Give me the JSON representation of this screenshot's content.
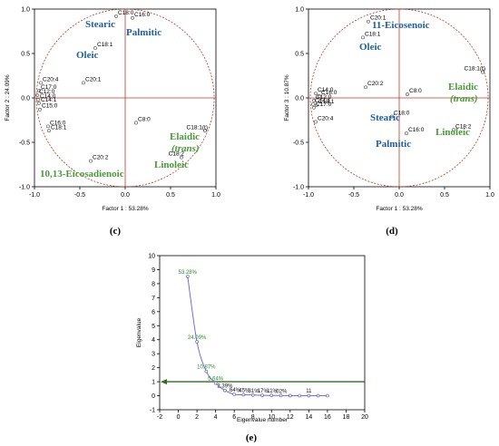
{
  "chart_data": [
    {
      "type": "scatter",
      "panel": "(c)",
      "xlabel": "Factor 1 : 53.28%",
      "ylabel": "Factor 2 : 24.09%",
      "xlim": [
        -1.0,
        1.0
      ],
      "ylim": [
        -1.0,
        1.0
      ],
      "xticks": [
        "-1.0",
        "-0.5",
        "0.0",
        "0.5",
        "1.0"
      ],
      "yticks": [
        "-1.0",
        "-0.5",
        "0.0",
        "0.5",
        "1.0"
      ],
      "points": [
        {
          "label": "C18:0",
          "x": -0.1,
          "y": 0.92
        },
        {
          "label": "C16:0",
          "x": 0.08,
          "y": 0.9
        },
        {
          "label": "C18:1",
          "x": -0.33,
          "y": 0.56
        },
        {
          "label": "C20:1",
          "x": -0.46,
          "y": 0.17
        },
        {
          "label": "C20:4",
          "x": -0.93,
          "y": 0.17
        },
        {
          "label": "C17:0",
          "x": -0.95,
          "y": 0.08
        },
        {
          "label": "C12:0",
          "x": -0.97,
          "y": 0.03
        },
        {
          "label": "C14:0",
          "x": -0.96,
          "y": -0.02
        },
        {
          "label": "C14:1",
          "x": -0.95,
          "y": -0.06
        },
        {
          "label": "C15:0",
          "x": -0.94,
          "y": -0.13
        },
        {
          "label": "C16:0",
          "x": -0.85,
          "y": -0.32
        },
        {
          "label": "C18:1",
          "x": -0.84,
          "y": -0.37
        },
        {
          "label": "C8:0",
          "x": 0.12,
          "y": -0.28
        },
        {
          "label": "C18:1(t)",
          "x": 0.88,
          "y": -0.37
        },
        {
          "label": "C18:2",
          "x": 0.62,
          "y": -0.67
        },
        {
          "label": "C20:2",
          "x": -0.38,
          "y": -0.71
        }
      ],
      "annotations": {
        "stearic": "Stearic",
        "palmitic": "Palmitic",
        "oleic": "Oleic",
        "elaidic1": "Elaidic",
        "elaidic2": "(trans)",
        "linoleic": "Linoleic",
        "eicosadienoic": "10,13-Eicosadienoic"
      }
    },
    {
      "type": "scatter",
      "panel": "(d)",
      "xlabel": "Factor 1 : 53.28%",
      "ylabel": "Factor 3 : 10.87%",
      "xlim": [
        -1.0,
        1.0
      ],
      "ylim": [
        -1.0,
        1.0
      ],
      "xticks": [
        "-1.0",
        "-0.5",
        "0.0",
        "0.5",
        "1.0"
      ],
      "yticks": [
        "-1.0",
        "-0.5",
        "0.0",
        "0.5",
        "1.0"
      ],
      "points": [
        {
          "label": "C20:1",
          "x": -0.34,
          "y": 0.86
        },
        {
          "label": "C18:1",
          "x": -0.4,
          "y": 0.68
        },
        {
          "label": "C20:2",
          "x": -0.37,
          "y": 0.12
        },
        {
          "label": "C8:0",
          "x": 0.09,
          "y": 0.04
        },
        {
          "label": "C18:1(t)",
          "x": 0.92,
          "y": 0.29
        },
        {
          "label": "C14:0",
          "x": -0.92,
          "y": 0.05
        },
        {
          "label": "C16:0",
          "x": -0.88,
          "y": 0.02
        },
        {
          "label": "C12:0",
          "x": -0.94,
          "y": -0.03
        },
        {
          "label": "C14:1",
          "x": -0.95,
          "y": -0.07
        },
        {
          "label": "C18:1",
          "x": -0.91,
          "y": -0.08
        },
        {
          "label": "C17:0",
          "x": -0.94,
          "y": -0.11
        },
        {
          "label": "C20:4",
          "x": -0.92,
          "y": -0.27
        },
        {
          "label": "C18:0",
          "x": -0.08,
          "y": -0.21
        },
        {
          "label": "C16:0",
          "x": 0.08,
          "y": -0.4
        },
        {
          "label": "C18:2",
          "x": 0.6,
          "y": -0.36
        }
      ],
      "annotations": {
        "eicosenoic": "11-Eicosenoic",
        "oleic": "Oleic",
        "elaidic1": "Elaidic",
        "elaidic2": "(trans)",
        "stearic": "Stearic",
        "palmitic": "Palmitic",
        "linoleic": "Linoleic"
      }
    },
    {
      "type": "line",
      "panel": "(e)",
      "xlabel": "Eigenvalue number",
      "ylabel": "Eigenvalue",
      "xlim": [
        -2,
        20
      ],
      "ylim": [
        -1,
        10
      ],
      "xticks": [
        "-2",
        "0",
        "2",
        "4",
        "6",
        "8",
        "10",
        "12",
        "14",
        "16",
        "18",
        "20"
      ],
      "yticks": [
        "-1",
        "0",
        "1",
        "2",
        "3",
        "4",
        "5",
        "6",
        "7",
        "8",
        "9",
        "10"
      ],
      "x": [
        1,
        2,
        3,
        4,
        5,
        6,
        7,
        8,
        9,
        10,
        11,
        12,
        13,
        14,
        15,
        16
      ],
      "y": [
        8.52,
        3.85,
        1.74,
        0.9,
        0.38,
        0.1,
        0.07,
        0.05,
        0.03,
        0.02,
        0.01,
        0.005,
        0.003,
        0.002,
        0.001,
        0.0
      ],
      "reference_line": 1,
      "labels": [
        {
          "text": "53.28%",
          "x": 1,
          "y": 8.52,
          "tone": "green"
        },
        {
          "text": "24.09%",
          "x": 2,
          "y": 3.85,
          "tone": "green"
        },
        {
          "text": "10.87%",
          "x": 3,
          "y": 1.74,
          "tone": "green"
        },
        {
          "text": "5.64%",
          "x": 4,
          "y": 0.9,
          "tone": "green"
        },
        {
          "text": "2.39%",
          "x": 5,
          "y": 0.38,
          "tone": "dark"
        },
        {
          "text": ".64%",
          "x": 6,
          "y": 0.1,
          "tone": "dark"
        },
        {
          "text": ".45%",
          "x": 7,
          "y": 0.07,
          "tone": "dark"
        },
        {
          "text": ".31%",
          "x": 8,
          "y": 0.05,
          "tone": "dark"
        },
        {
          "text": ".17%",
          "x": 9,
          "y": 0.03,
          "tone": "dark"
        },
        {
          "text": ".11%",
          "x": 10,
          "y": 0.02,
          "tone": "dark"
        },
        {
          "text": ".02%",
          "x": 11,
          "y": 0.01,
          "tone": "dark"
        },
        {
          "text": "11",
          "x": 14,
          "y": 0.02,
          "tone": "dark"
        }
      ]
    }
  ],
  "captions": {
    "c": "(c)",
    "d": "(d)",
    "e": "(e)"
  },
  "colors": {
    "blue": "#1f5fa8",
    "green": "#4a9a3a",
    "circle": "#c0392b",
    "line": "#7070d8",
    "refline": "#2f6e1e"
  }
}
